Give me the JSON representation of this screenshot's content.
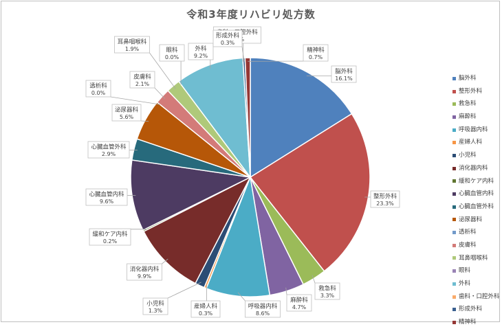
{
  "chart_data": {
    "type": "pie",
    "title": "令和3年度リハビリ処方数",
    "legend_position": "right",
    "slices": [
      {
        "name": "脳外科",
        "percent_label": "16.1%",
        "value": 16.1,
        "color": "#4f81bd"
      },
      {
        "name": "整形外科",
        "percent_label": "23.3%",
        "value": 23.3,
        "color": "#c0504d"
      },
      {
        "name": "救急科",
        "percent_label": "3.3%",
        "value": 3.3,
        "color": "#9bbb59"
      },
      {
        "name": "麻酔科",
        "percent_label": "4.7%",
        "value": 4.7,
        "color": "#8064a2"
      },
      {
        "name": "呼吸器内科",
        "percent_label": "8.6%",
        "value": 8.6,
        "color": "#4bacc6"
      },
      {
        "name": "産婦人科",
        "percent_label": "0.3%",
        "value": 0.3,
        "color": "#f79646"
      },
      {
        "name": "小児科",
        "percent_label": "1.3%",
        "value": 1.3,
        "color": "#2c4d75"
      },
      {
        "name": "消化器内科",
        "percent_label": "9.9%",
        "value": 9.9,
        "color": "#772c2a"
      },
      {
        "name": "緩和ケア内科",
        "percent_label": "0.2%",
        "value": 0.2,
        "color": "#5f7530"
      },
      {
        "name": "心臓血管内科",
        "percent_label": "9.6%",
        "value": 9.6,
        "color": "#4d3b62"
      },
      {
        "name": "心臓血管外科",
        "percent_label": "2.9%",
        "value": 2.9,
        "color": "#276a7c"
      },
      {
        "name": "泌尿器科",
        "percent_label": "5.6%",
        "value": 5.6,
        "color": "#b65708"
      },
      {
        "name": "透析科",
        "percent_label": "0.0%",
        "value": 0.0,
        "color": "#729aca"
      },
      {
        "name": "皮膚科",
        "percent_label": "2.1%",
        "value": 2.1,
        "color": "#d37b79"
      },
      {
        "name": "耳鼻咽喉科",
        "percent_label": "1.9%",
        "value": 1.9,
        "color": "#afc97a"
      },
      {
        "name": "眼科",
        "percent_label": "0.0%",
        "value": 0.0,
        "color": "#9983b5"
      },
      {
        "name": "外科",
        "percent_label": "9.2%",
        "value": 9.2,
        "color": "#6fbdd1"
      },
      {
        "name": "歯科・口腔外科",
        "percent_label": "0.0%",
        "value": 0.0,
        "color": "#f9ab6b"
      },
      {
        "name": "形成外科",
        "percent_label": "0.3%",
        "value": 0.3,
        "color": "#3a5f8f"
      },
      {
        "name": "精神科",
        "percent_label": "0.7%",
        "value": 0.7,
        "color": "#953735"
      }
    ]
  }
}
